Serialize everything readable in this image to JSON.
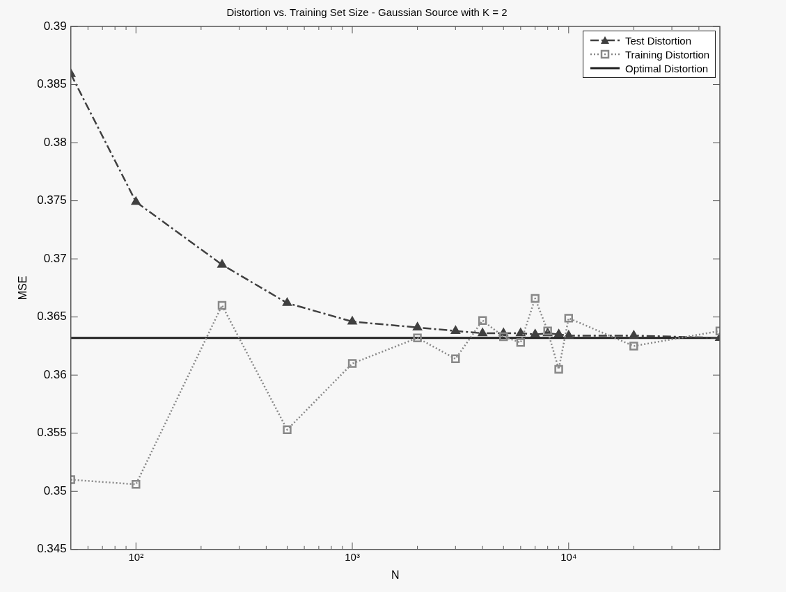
{
  "chart_data": {
    "type": "line",
    "title": "Distortion vs. Training Set Size - Gaussian Source with K = 2",
    "xlabel": "N",
    "ylabel": "MSE",
    "log": "x",
    "xlim": [
      50,
      50000
    ],
    "xticks": [
      {
        "value": 60,
        "label": null
      },
      {
        "value": 70,
        "label": null
      },
      {
        "value": 80,
        "label": null
      },
      {
        "value": 90,
        "label": null
      },
      {
        "value": 100,
        "label": "10²"
      },
      {
        "value": 200,
        "label": null
      },
      {
        "value": 300,
        "label": null
      },
      {
        "value": 400,
        "label": null
      },
      {
        "value": 500,
        "label": null
      },
      {
        "value": 600,
        "label": null
      },
      {
        "value": 700,
        "label": null
      },
      {
        "value": 800,
        "label": null
      },
      {
        "value": 900,
        "label": null
      },
      {
        "value": 1000,
        "label": "10³"
      },
      {
        "value": 2000,
        "label": null
      },
      {
        "value": 3000,
        "label": null
      },
      {
        "value": 4000,
        "label": null
      },
      {
        "value": 5000,
        "label": null
      },
      {
        "value": 6000,
        "label": null
      },
      {
        "value": 7000,
        "label": null
      },
      {
        "value": 8000,
        "label": null
      },
      {
        "value": 9000,
        "label": null
      },
      {
        "value": 10000,
        "label": "10⁴"
      },
      {
        "value": 20000,
        "label": null
      },
      {
        "value": 30000,
        "label": null
      },
      {
        "value": 40000,
        "label": null
      }
    ],
    "ylim": [
      0.345,
      0.39
    ],
    "yticks": [
      0.345,
      0.35,
      0.355,
      0.36,
      0.365,
      0.37,
      0.375,
      0.38,
      0.385,
      0.39
    ],
    "grid": false,
    "legend": "top right",
    "x": [
      50,
      100,
      250,
      500,
      1000,
      2000,
      3000,
      4000,
      5000,
      6000,
      7000,
      8000,
      9000,
      10000,
      20000,
      50000
    ],
    "series": [
      {
        "name": "Test Distortion",
        "color": "#404040",
        "marker": "triangle",
        "line_style": "dashed",
        "values": [
          0.3859,
          0.3749,
          0.3695,
          0.3662,
          0.3646,
          0.3641,
          0.3638,
          0.3636,
          0.3636,
          0.3636,
          0.3635,
          0.3636,
          0.3635,
          0.3634,
          0.3634,
          0.3632
        ]
      },
      {
        "name": "Training Distortion",
        "color": "#888888",
        "marker": "square",
        "line_style": "dotted",
        "values": [
          0.351,
          0.3506,
          0.366,
          0.3553,
          0.361,
          0.3632,
          0.3614,
          0.3647,
          0.3633,
          0.3628,
          0.3666,
          0.3638,
          0.3605,
          0.3649,
          0.3625,
          0.3638
        ]
      },
      {
        "name": "Optimal Distortion",
        "color": "#202020",
        "marker": "none",
        "line_style": "solid",
        "x": [
          50,
          50000
        ],
        "values": [
          0.3632,
          0.3632
        ]
      }
    ]
  }
}
